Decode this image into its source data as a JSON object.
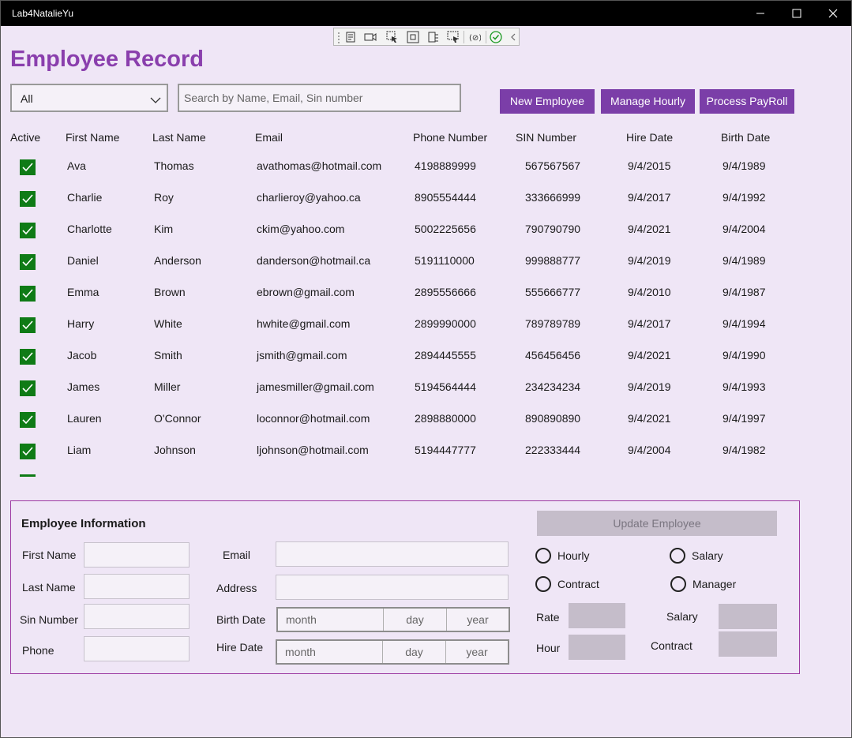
{
  "window": {
    "title": "Lab4NatalieYu"
  },
  "toolbar": {
    "tools": [
      "live-visual-tree-icon",
      "record-icon",
      "select-element-icon",
      "display-layout-adorners-icon",
      "track-focus-icon",
      "display-selection-icon",
      "binding-failures-icon",
      "hot-reload-check-icon",
      "collapse-chevron-icon"
    ]
  },
  "page": {
    "title": "Employee Record"
  },
  "filter": {
    "selected": "All"
  },
  "search": {
    "placeholder": "Search by Name, Email, Sin number",
    "value": ""
  },
  "actions": {
    "new_employee": "New Employee",
    "manage_hourly": "Manage Hourly",
    "process_payroll": "Process PayRoll"
  },
  "table": {
    "headers": [
      "Active",
      "First Name",
      "Last Name",
      "Email",
      "Phone Number",
      "SIN Number",
      "Hire Date",
      "Birth Date"
    ],
    "rows": [
      {
        "active": true,
        "first": "Ava",
        "last": "Thomas",
        "email": "avathomas@hotmail.com",
        "phone": "4198889999",
        "sin": "567567567",
        "hire": "9/4/2015",
        "birth": "9/4/1989"
      },
      {
        "active": true,
        "first": "Charlie",
        "last": "Roy",
        "email": "charlieroy@yahoo.ca",
        "phone": "8905554444",
        "sin": "333666999",
        "hire": "9/4/2017",
        "birth": "9/4/1992"
      },
      {
        "active": true,
        "first": "Charlotte",
        "last": "Kim",
        "email": "ckim@yahoo.com",
        "phone": "5002225656",
        "sin": "790790790",
        "hire": "9/4/2021",
        "birth": "9/4/2004"
      },
      {
        "active": true,
        "first": "Daniel",
        "last": "Anderson",
        "email": "danderson@hotmail.ca",
        "phone": "5191110000",
        "sin": "999888777",
        "hire": "9/4/2019",
        "birth": "9/4/1989"
      },
      {
        "active": true,
        "first": "Emma",
        "last": "Brown",
        "email": "ebrown@gmail.com",
        "phone": "2895556666",
        "sin": "555666777",
        "hire": "9/4/2010",
        "birth": "9/4/1987"
      },
      {
        "active": true,
        "first": "Harry",
        "last": "White",
        "email": "hwhite@gmail.com",
        "phone": "2899990000",
        "sin": "789789789",
        "hire": "9/4/2017",
        "birth": "9/4/1994"
      },
      {
        "active": true,
        "first": "Jacob",
        "last": "Smith",
        "email": "jsmith@gmail.com",
        "phone": "2894445555",
        "sin": "456456456",
        "hire": "9/4/2021",
        "birth": "9/4/1990"
      },
      {
        "active": true,
        "first": "James",
        "last": "Miller",
        "email": "jamesmiller@gmail.com",
        "phone": "5194564444",
        "sin": "234234234",
        "hire": "9/4/2019",
        "birth": "9/4/1993"
      },
      {
        "active": true,
        "first": "Lauren",
        "last": "O'Connor",
        "email": "loconnor@hotmail.com",
        "phone": "2898880000",
        "sin": "890890890",
        "hire": "9/4/2021",
        "birth": "9/4/1997"
      },
      {
        "active": true,
        "first": "Liam",
        "last": "Johnson",
        "email": "ljohnson@hotmail.com",
        "phone": "5194447777",
        "sin": "222333444",
        "hire": "9/4/2004",
        "birth": "9/4/1982"
      }
    ]
  },
  "form": {
    "title": "Employee Information",
    "labels": {
      "first_name": "First Name",
      "last_name": "Last Name",
      "sin_number": "Sin Number",
      "phone": "Phone",
      "email": "Email",
      "address": "Address",
      "birth_date": "Birth Date",
      "hire_date": "Hire Date",
      "rate": "Rate",
      "hour": "Hour",
      "salary": "Salary",
      "contract": "Contract"
    },
    "date_placeholders": {
      "month": "month",
      "day": "day",
      "year": "year"
    },
    "update_button": "Update Employee",
    "types": [
      "Hourly",
      "Salary",
      "Contract",
      "Manager"
    ]
  },
  "colors": {
    "accent": "#7b3ea8",
    "title": "#8a3fad",
    "checkbox": "#0f7b16",
    "background": "#efe6f6",
    "panel_border": "#9d3aa2",
    "disabled": "#c5bdca"
  }
}
